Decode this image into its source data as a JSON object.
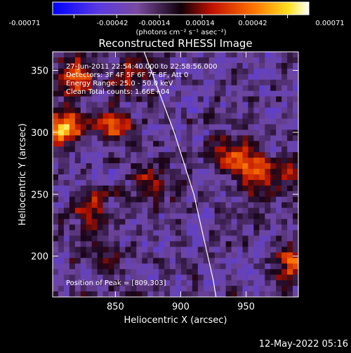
{
  "chart_data": {
    "type": "heatmap",
    "title": "Reconstructed RHESSI Image",
    "xlabel": "Heliocentric X (arcsec)",
    "ylabel": "Heliocentric Y (arcsec)",
    "xlim": [
      802,
      990
    ],
    "ylim": [
      167,
      365
    ],
    "x_ticks": [
      850,
      900,
      950
    ],
    "y_ticks": [
      200,
      250,
      300,
      350
    ],
    "colorbar": {
      "ticks": [
        "-0.00071",
        "-0.00042",
        "-0.00014",
        "0.00014",
        "0.00042",
        "0.00071"
      ],
      "range": [
        -0.00071,
        0.00071
      ],
      "unit_label": "(photons cm⁻² s⁻¹ asec⁻²)",
      "colors": [
        "#0000ff",
        "#8050d0",
        "#200010",
        "#c01000",
        "#ff8000",
        "#ffff40",
        "#ffffff"
      ]
    },
    "annotations": [
      "27-Jun-2011 22:54:40.000 to 22:58:56.000",
      "Detectors: 3F 4F 5F 6F 7F 8F, Att 0",
      "Energy Range: 25.0 - 50.0 keV",
      "Clean     Total counts: 1.66E+04"
    ],
    "peak_label": "Position of Peak = [809,303]",
    "limb_curve": [
      [
        872,
        365
      ],
      [
        895,
        300
      ],
      [
        910,
        250
      ],
      [
        925,
        180
      ],
      [
        927,
        167
      ]
    ],
    "bright_regions": [
      {
        "x": 809,
        "y": 303,
        "value": 0.00071
      },
      {
        "x": 820,
        "y": 345,
        "value": 0.00055
      },
      {
        "x": 848,
        "y": 305,
        "value": 0.0005
      },
      {
        "x": 955,
        "y": 270,
        "value": 0.00052
      },
      {
        "x": 935,
        "y": 285,
        "value": 0.0004
      },
      {
        "x": 980,
        "y": 265,
        "value": 0.0003
      },
      {
        "x": 830,
        "y": 240,
        "value": 0.00035
      },
      {
        "x": 875,
        "y": 260,
        "value": 0.0003
      },
      {
        "x": 985,
        "y": 195,
        "value": 0.00045
      },
      {
        "x": 840,
        "y": 200,
        "value": 0.0002
      },
      {
        "x": 860,
        "y": 345,
        "value": 0.00035
      }
    ]
  },
  "timestamp": "12-May-2022 05:16"
}
